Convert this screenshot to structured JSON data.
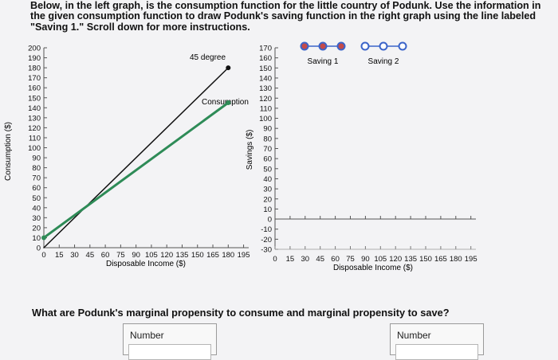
{
  "instructions": {
    "lines": [
      "Below, in the left graph, is the consumption function for the little country of Podunk. Use the information in",
      "the given consumption function to draw Podunk's saving function in the right graph using the line labeled",
      "\"Saving 1.\" Scroll down for more instructions."
    ]
  },
  "left_graph": {
    "y_axis_label": "Consumption ($)",
    "x_axis_label": "Disposable Income ($)",
    "y_ticks": [
      "0",
      "10",
      "20",
      "30",
      "40",
      "50",
      "60",
      "70",
      "80",
      "90",
      "100",
      "110",
      "120",
      "130",
      "140",
      "150",
      "160",
      "170",
      "180",
      "190",
      "200"
    ],
    "x_ticks": [
      "0",
      "15",
      "30",
      "45",
      "60",
      "75",
      "90",
      "105",
      "120",
      "135",
      "150",
      "165",
      "180",
      "195"
    ],
    "line_45_label": "45 degree",
    "consumption_label": "Consumption",
    "line_45_color": "#111111",
    "consumption_color": "#2e8b57"
  },
  "right_graph": {
    "y_axis_label": "Savings ($)",
    "x_axis_label": "Disposable Income ($)",
    "y_ticks": [
      "-30",
      "-20",
      "-10",
      "0",
      "10",
      "20",
      "30",
      "40",
      "50",
      "60",
      "70",
      "80",
      "90",
      "100",
      "110",
      "120",
      "130",
      "140",
      "150",
      "160",
      "170"
    ],
    "x_ticks": [
      "0",
      "15",
      "30",
      "45",
      "60",
      "75",
      "90",
      "105",
      "120",
      "135",
      "150",
      "165",
      "180",
      "195"
    ],
    "legend": [
      {
        "name": "Saving 1",
        "color": "#3b64c9",
        "fill": "#c44a4a"
      },
      {
        "name": "Saving 2",
        "color": "#3b64c9",
        "fill": "#ffffff"
      }
    ]
  },
  "chart_data": [
    {
      "type": "line",
      "xlabel": "Disposable Income ($)",
      "ylabel": "Consumption ($)",
      "xlim": [
        0,
        200
      ],
      "ylim": [
        0,
        200
      ],
      "series": [
        {
          "name": "45 degree",
          "x": [
            0,
            180
          ],
          "y": [
            0,
            180
          ]
        },
        {
          "name": "Consumption",
          "x": [
            0,
            180
          ],
          "y": [
            10,
            145
          ]
        }
      ]
    },
    {
      "type": "line",
      "xlabel": "Disposable Income ($)",
      "ylabel": "Savings ($)",
      "xlim": [
        0,
        200
      ],
      "ylim": [
        -30,
        170
      ],
      "series": [
        {
          "name": "Saving 1",
          "x": [],
          "y": []
        },
        {
          "name": "Saving 2",
          "x": [],
          "y": []
        }
      ]
    }
  ],
  "question": {
    "text": "What are Podunk's marginal propensity to consume and marginal propensity to save?",
    "mpc_label": "Number",
    "mps_label": "Number"
  }
}
